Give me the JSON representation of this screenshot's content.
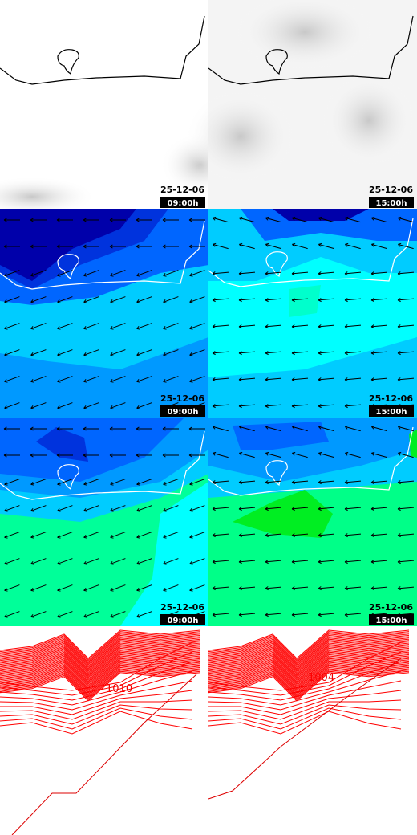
{
  "panels": [
    {
      "date": "25-12-06",
      "time": "09:00h"
    },
    {
      "date": "25-12-06",
      "time": "15:00h"
    },
    {
      "date": "25-12-06",
      "time": "09:00h"
    },
    {
      "date": "25-12-06",
      "time": "15:00h"
    },
    {
      "date": "25-12-06",
      "time": "09:00h"
    },
    {
      "date": "25-12-06",
      "time": "15:00h"
    }
  ],
  "contour_labels": [
    "1010",
    "1004"
  ]
}
